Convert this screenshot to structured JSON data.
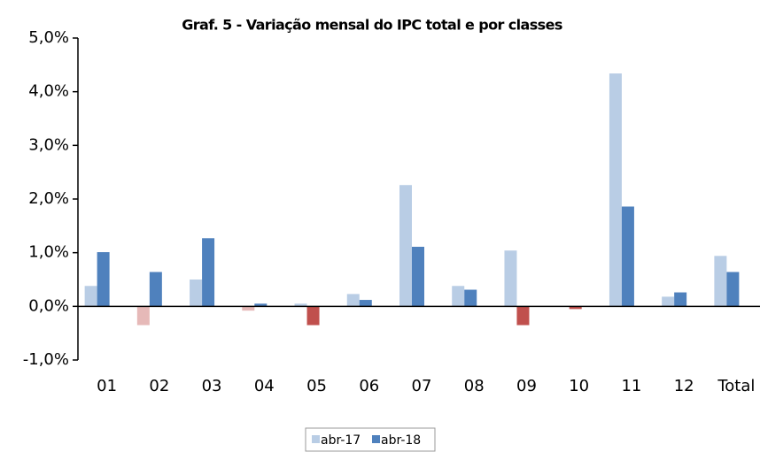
{
  "chart_data": {
    "type": "bar",
    "title": "Graf. 5 - Variação mensal do IPC total e por classes",
    "categories": [
      "01",
      "02",
      "03",
      "04",
      "05",
      "06",
      "07",
      "08",
      "09",
      "10",
      "11",
      "12",
      "Total"
    ],
    "series": [
      {
        "name": "abr-17",
        "color": "#b9cde5",
        "negative_color": "#e6b9b8",
        "values": [
          0.38,
          -0.35,
          0.5,
          -0.08,
          0.05,
          0.23,
          2.26,
          0.38,
          1.04,
          0,
          4.34,
          0.18,
          0.94
        ]
      },
      {
        "name": "abr-18",
        "color": "#4f81bd",
        "negative_color": "#c0504d",
        "values": [
          1.01,
          0.64,
          1.27,
          0.05,
          -0.35,
          0.12,
          1.11,
          0.31,
          -0.35,
          -0.05,
          1.86,
          0.26,
          0.64
        ]
      }
    ],
    "ylim": [
      -1,
      5
    ],
    "yticks": [
      {
        "value": -1,
        "label": "-1,0%"
      },
      {
        "value": 0,
        "label": "0,0%"
      },
      {
        "value": 1,
        "label": "1,0%"
      },
      {
        "value": 2,
        "label": "2,0%"
      },
      {
        "value": 3,
        "label": "3,0%"
      },
      {
        "value": 4,
        "label": "4,0%"
      },
      {
        "value": 5,
        "label": "5,0%"
      }
    ],
    "grid": false
  }
}
